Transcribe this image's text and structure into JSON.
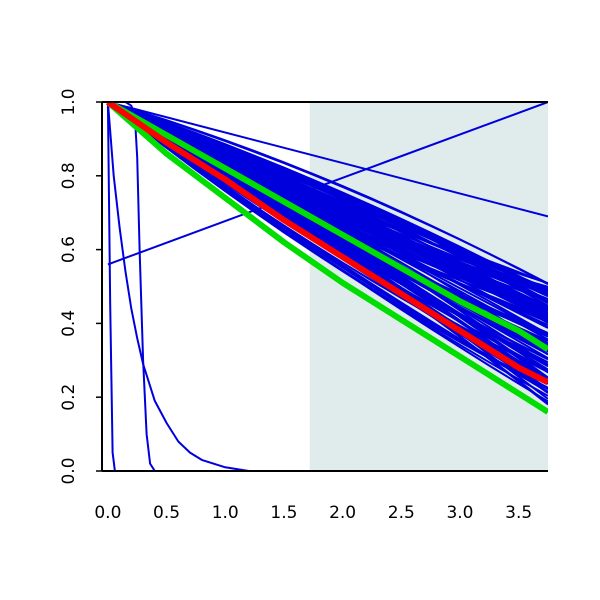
{
  "chart_data": {
    "type": "line",
    "title": "",
    "xlabel": "",
    "ylabel": "",
    "xlim": [
      -0.05,
      3.75
    ],
    "ylim": [
      0.0,
      1.0
    ],
    "x_ticks": [
      "0.0",
      "0.5",
      "1.0",
      "1.5",
      "2.0",
      "2.5",
      "3.0",
      "3.5"
    ],
    "y_ticks": [
      "0.0",
      "0.2",
      "0.4",
      "0.6",
      "0.8",
      "1.0"
    ],
    "grid": false,
    "legend": "none",
    "shaded_region": {
      "x_from": 1.72,
      "x_to": 3.75,
      "color": "#e0ecec"
    },
    "colors": {
      "ensemble": "#0000dd",
      "mean": "#ff0000",
      "band": "#00dd00",
      "axis": "#000000"
    },
    "ensemble_count": 120,
    "ensemble_x": [
      0,
      0.25,
      0.5,
      0.75,
      1.0,
      1.25,
      1.5,
      1.75,
      2.0,
      2.25,
      2.5,
      2.75,
      3.0,
      3.25,
      3.5,
      3.75
    ],
    "series": [
      {
        "role": "ensemble",
        "x": [
          0,
          3.75
        ],
        "y": [
          1.0,
          0.69
        ]
      },
      {
        "role": "ensemble",
        "x": [
          0,
          3.75
        ],
        "y": [
          0.56,
          1.0
        ]
      },
      {
        "role": "ensemble",
        "x": [
          0,
          0.05,
          0.1,
          0.15,
          0.2,
          0.25,
          0.3,
          0.4,
          0.5,
          0.6,
          0.7,
          0.8,
          1.0,
          1.2,
          1.5,
          2.0,
          3.75
        ],
        "y": [
          1.0,
          0.8,
          0.66,
          0.54,
          0.44,
          0.36,
          0.29,
          0.19,
          0.13,
          0.08,
          0.05,
          0.03,
          0.01,
          0.0,
          0.0,
          0.0,
          0.0
        ]
      },
      {
        "role": "ensemble",
        "x": [
          0,
          0.15,
          0.2,
          0.23,
          0.25,
          0.27,
          0.3,
          0.33,
          0.36,
          0.4,
          0.5,
          3.75
        ],
        "y": [
          1.0,
          1.0,
          0.99,
          0.96,
          0.85,
          0.6,
          0.3,
          0.1,
          0.02,
          0.0,
          0.0,
          0.0
        ]
      },
      {
        "role": "ensemble",
        "x": [
          0,
          0.02,
          0.04,
          0.06,
          0.1,
          3.75
        ],
        "y": [
          1.0,
          0.45,
          0.05,
          0.0,
          0.0,
          0.0
        ]
      },
      {
        "role": "mean",
        "x": [
          0,
          0.5,
          1.0,
          1.5,
          2.0,
          2.5,
          3.0,
          3.5,
          3.75
        ],
        "y": [
          1.0,
          0.89,
          0.79,
          0.68,
          0.58,
          0.48,
          0.38,
          0.28,
          0.24
        ]
      },
      {
        "role": "band",
        "x": [
          0,
          0.5,
          1.0,
          1.5,
          2.0,
          2.5,
          3.0,
          3.5,
          3.75
        ],
        "y": [
          1.0,
          0.91,
          0.82,
          0.73,
          0.64,
          0.55,
          0.46,
          0.38,
          0.33
        ]
      },
      {
        "role": "band",
        "x": [
          0,
          0.5,
          1.0,
          1.5,
          2.0,
          2.5,
          3.0,
          3.5,
          3.75
        ],
        "y": [
          1.0,
          0.86,
          0.74,
          0.62,
          0.51,
          0.41,
          0.31,
          0.21,
          0.16
        ]
      }
    ]
  }
}
